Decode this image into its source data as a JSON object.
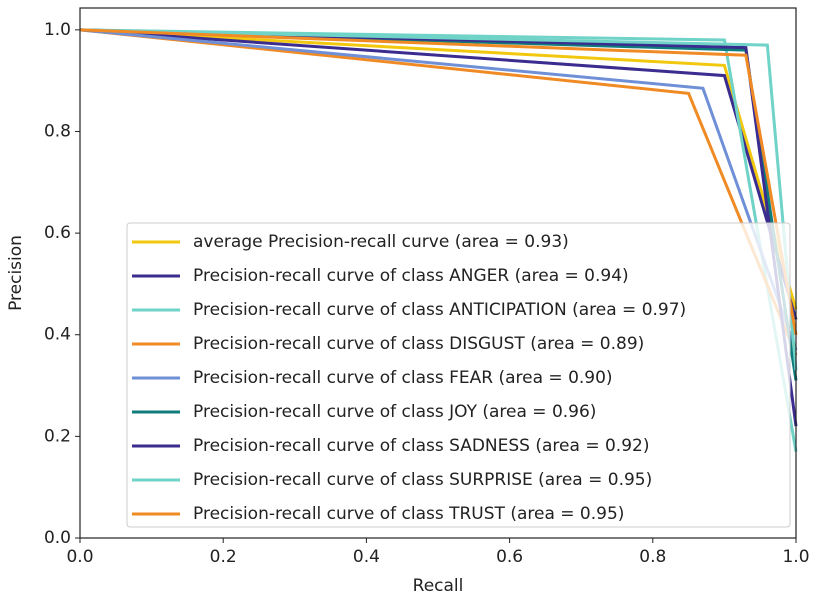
{
  "chart_data": {
    "type": "line",
    "x_label": "Recall",
    "y_label": "Precision",
    "xlim": [
      0,
      1
    ],
    "ylim": [
      0,
      1.043
    ],
    "xticks": [
      {
        "value": 0,
        "label": "0.0"
      },
      0.2,
      0.4,
      0.6,
      0.8,
      {
        "value": 1,
        "label": "1.0"
      }
    ],
    "yticks": [
      {
        "value": 0,
        "label": "0.0"
      },
      0.2,
      0.4,
      0.6,
      0.8,
      {
        "value": 1,
        "label": "1.0"
      }
    ],
    "grid": false,
    "legend": "lower right",
    "series": [
      {
        "name": "average Precision-recall curve (area = 0.93)",
        "color": "#f2c80f",
        "x": [
          0,
          0.9,
          1
        ],
        "values": [
          1,
          0.93,
          0.45
        ]
      },
      {
        "name": "Precision-recall curve of class ANGER (area = 0.94)",
        "color": "#3a2d8f",
        "x": [
          0,
          0.9,
          1
        ],
        "values": [
          1,
          0.91,
          0.43
        ]
      },
      {
        "name": "Precision-recall curve of class ANTICIPATION (area = 0.97)",
        "color": "#6fd3c7",
        "x": [
          0,
          0.9,
          1
        ],
        "values": [
          1,
          0.98,
          0.17
        ]
      },
      {
        "name": "Precision-recall curve of class DISGUST (area = 0.89)",
        "color": "#f08a24",
        "x": [
          0,
          0.85,
          1
        ],
        "values": [
          1,
          0.875,
          0.36
        ]
      },
      {
        "name": "Precision-recall curve of class FEAR (area = 0.90)",
        "color": "#6f8fd6",
        "x": [
          0,
          0.87,
          1
        ],
        "values": [
          1,
          0.885,
          0.37
        ]
      },
      {
        "name": "Precision-recall curve of class JOY (area = 0.96)",
        "color": "#0f7b7b",
        "x": [
          0,
          0.93,
          1
        ],
        "values": [
          1,
          0.96,
          0.31
        ]
      },
      {
        "name": "Precision-recall curve of class SADNESS (area = 0.92)",
        "color": "#3a2d8f",
        "x": [
          0,
          0.93,
          1
        ],
        "values": [
          1,
          0.965,
          0.22
        ]
      },
      {
        "name": "Precision-recall curve of class SURPRISE (area = 0.95)",
        "color": "#6fd3c7",
        "x": [
          0,
          0.96,
          1
        ],
        "values": [
          1,
          0.97,
          0.33
        ]
      },
      {
        "name": "Precision-recall curve of class TRUST (area = 0.95)",
        "color": "#f08a24",
        "x": [
          0,
          0.93,
          1
        ],
        "values": [
          1,
          0.95,
          0.4
        ]
      }
    ]
  }
}
